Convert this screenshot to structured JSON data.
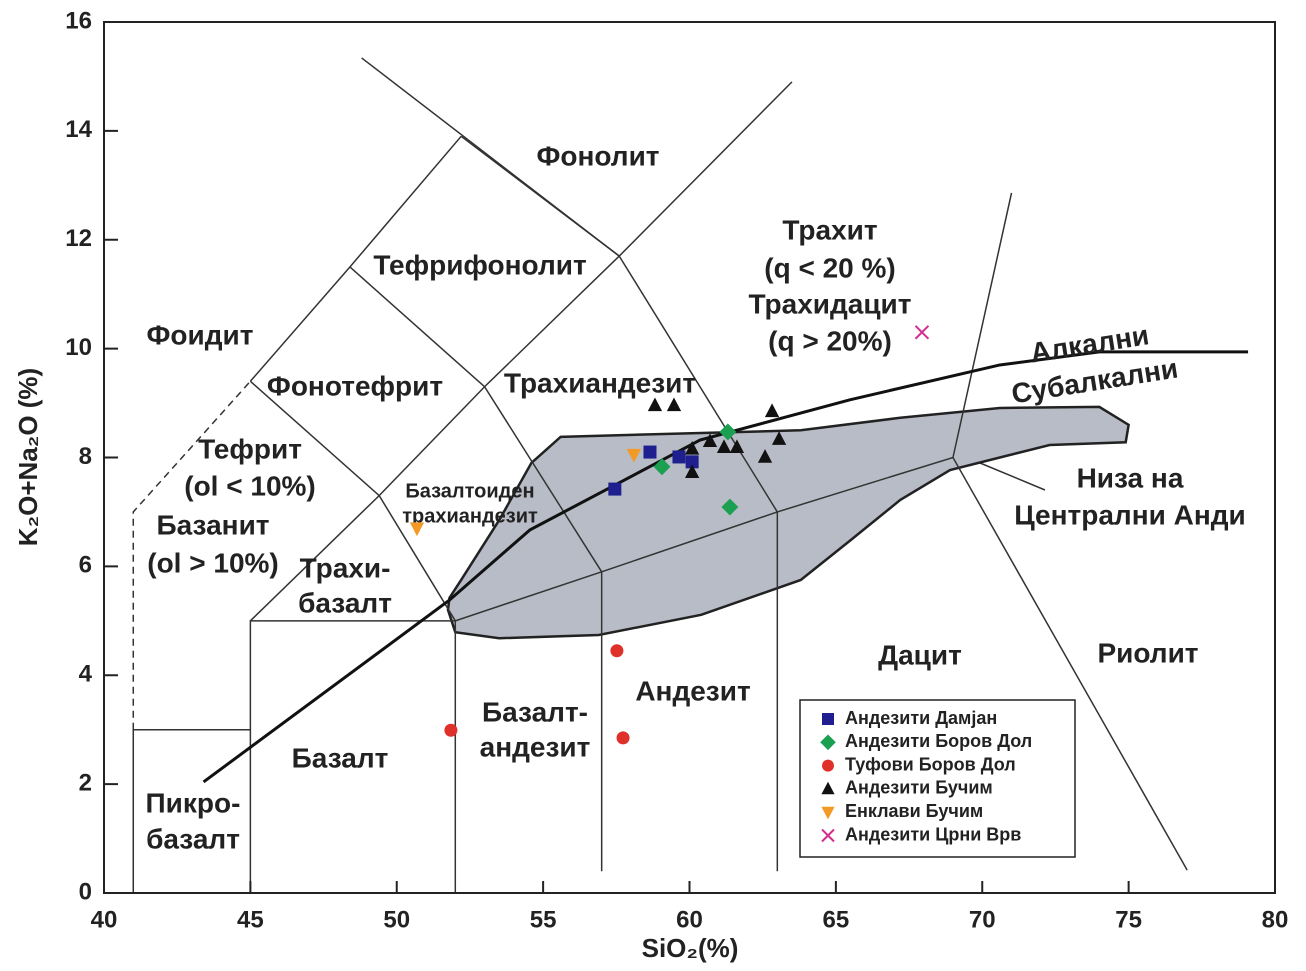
{
  "chart_data": {
    "type": "scatter",
    "xlabel": "SiO₂(%)",
    "ylabel": "K₂O+Na₂O (%)",
    "xlim": [
      40,
      80
    ],
    "ylim": [
      0,
      16
    ],
    "xticks": [
      40,
      45,
      50,
      55,
      60,
      65,
      70,
      75,
      80
    ],
    "yticks": [
      0,
      2,
      4,
      6,
      8,
      10,
      12,
      14,
      16
    ],
    "legend": "lower right",
    "series": [
      {
        "name": "Андезити Дамјан",
        "color": "#1f1f8f",
        "marker": "square",
        "x": [
          57.45,
          58.65,
          59.64,
          60.09
        ],
        "values": [
          7.42,
          8.1,
          8.01,
          7.92
        ]
      },
      {
        "name": "Андезити Боров Дол",
        "color": "#1aa050",
        "marker": "diamond",
        "x": [
          59.06,
          61.31,
          61.38
        ],
        "values": [
          7.83,
          8.47,
          7.09
        ]
      },
      {
        "name": "Туфови Боров Дол",
        "color": "#e0302a",
        "marker": "circle",
        "x": [
          51.85,
          57.52,
          57.73
        ],
        "values": [
          2.99,
          4.45,
          2.85
        ]
      },
      {
        "name": "Андезити Бучим",
        "color": "#111111",
        "marker": "triangle",
        "x": [
          58.82,
          59.47,
          60.09,
          60.09,
          60.7,
          61.18,
          61.62,
          62.58,
          62.82,
          63.06
        ],
        "values": [
          8.96,
          8.96,
          8.16,
          7.73,
          8.3,
          8.19,
          8.19,
          8.01,
          8.85,
          8.34
        ]
      },
      {
        "name": "Енклави Бучим",
        "color": "#f39a26",
        "marker": "triangle-down",
        "x": [
          58.1,
          50.69
        ],
        "values": [
          8.05,
          6.7
        ]
      },
      {
        "name": "Андезити Црни Врв",
        "color": "#d42c8c",
        "marker": "x",
        "x": [
          67.94
        ],
        "values": [
          10.3
        ]
      }
    ],
    "field_labels": [
      "Фонолит",
      "Тефрифонолит",
      "Трахит",
      "(q < 20 %)",
      "Трахидацит",
      "(q > 20%)",
      "Фоидит",
      "Фонотефрит",
      "Трахиандезит",
      "Алкални",
      "Субалкални",
      "Тефрит",
      "(ol < 10%)",
      "Базалтоиден",
      "трахиандезит",
      "Базанит",
      "(ol > 10%)",
      "Трахи-",
      "базалт",
      "Низа на",
      "Централни Анди",
      "Дацит",
      "Риолит",
      "Андезит",
      "Базалт-",
      "андезит",
      "Базалт",
      "Пикро-",
      "базалт"
    ],
    "andes_field": [
      [
        51.8,
        5.42
      ],
      [
        52.2,
        5.75
      ],
      [
        53.5,
        6.85
      ],
      [
        54.6,
        7.9
      ],
      [
        55.6,
        8.38
      ],
      [
        60.4,
        8.45
      ],
      [
        63.8,
        8.5
      ],
      [
        67.2,
        8.73
      ],
      [
        70.6,
        8.91
      ],
      [
        74.0,
        8.93
      ],
      [
        75.0,
        8.6
      ],
      [
        74.9,
        8.28
      ],
      [
        72.3,
        8.23
      ],
      [
        70.6,
        8.0
      ],
      [
        68.9,
        7.77
      ],
      [
        67.2,
        7.22
      ],
      [
        65.5,
        6.48
      ],
      [
        63.8,
        5.75
      ],
      [
        60.4,
        5.11
      ],
      [
        56.9,
        4.74
      ],
      [
        53.5,
        4.68
      ],
      [
        52.0,
        4.79
      ],
      [
        51.75,
        5.2
      ]
    ],
    "boundaries": [
      [
        [
          41,
          0
        ],
        [
          41,
          3
        ],
        [
          45,
          3
        ]
      ],
      [
        [
          45,
          0
        ],
        [
          45,
          5
        ],
        [
          52,
          5
        ],
        [
          57,
          5.9
        ],
        [
          63,
          7
        ],
        [
          69,
          8
        ],
        [
          77,
          0.42
        ]
      ],
      [
        [
          52,
          0
        ],
        [
          52,
          5
        ]
      ],
      [
        [
          57,
          0.4
        ],
        [
          57,
          5.9
        ]
      ],
      [
        [
          63,
          0.4
        ],
        [
          63,
          7
        ]
      ],
      [
        [
          69,
          8
        ],
        [
          71,
          12.86
        ]
      ],
      [
        [
          52,
          5
        ],
        [
          49.4,
          7.3
        ],
        [
          45,
          9.4
        ]
      ],
      [
        [
          57,
          5.9
        ],
        [
          53,
          9.3
        ],
        [
          48.4,
          11.5
        ]
      ],
      [
        [
          63,
          7
        ],
        [
          57.6,
          11.7
        ],
        [
          52.2,
          13.9
        ]
      ],
      [
        [
          45,
          5
        ],
        [
          49.4,
          7.3
        ],
        [
          53,
          9.3
        ],
        [
          57.6,
          11.7
        ],
        [
          63.5,
          14.9
        ]
      ],
      [
        [
          45,
          9.4
        ],
        [
          48.4,
          11.5
        ],
        [
          52.2,
          13.9
        ]
      ],
      [
        [
          48.8,
          15.34
        ],
        [
          57.6,
          11.7
        ]
      ]
    ],
    "dashed_boundaries": [
      [
        [
          41,
          3
        ],
        [
          41,
          7
        ],
        [
          45,
          9.4
        ]
      ]
    ],
    "alkaline_line": [
      [
        43.4,
        2.04
      ],
      [
        51.8,
        5.38
      ],
      [
        54.55,
        6.67
      ],
      [
        60.36,
        8.32
      ],
      [
        65.48,
        9.06
      ],
      [
        70.6,
        9.7
      ],
      [
        74.0,
        9.94
      ],
      [
        79.08,
        9.94
      ]
    ]
  }
}
